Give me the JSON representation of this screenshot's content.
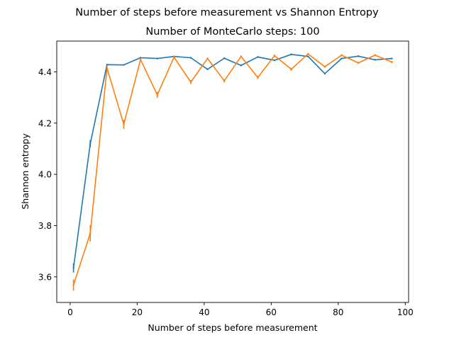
{
  "figure": {
    "suptitle": "Number of steps before measurement vs Shannon Entropy"
  },
  "chart_data": {
    "type": "line",
    "title": "Number of MonteCarlo steps: 100",
    "xlabel": "Number of steps before measurement",
    "ylabel": "Shannon entropy",
    "xlim": [
      -4,
      101
    ],
    "ylim": [
      3.5,
      4.52
    ],
    "xticks": [
      0,
      20,
      40,
      60,
      80,
      100
    ],
    "yticks": [
      3.6,
      3.8,
      4.0,
      4.2,
      4.4
    ],
    "ytick_labels": [
      "3.6",
      "3.8",
      "4.0",
      "4.2",
      "4.4"
    ],
    "grid": false,
    "legend": false,
    "error_bars": true,
    "x": [
      1,
      6,
      11,
      16,
      21,
      26,
      31,
      36,
      41,
      46,
      51,
      56,
      61,
      66,
      71,
      76,
      81,
      86,
      91,
      96
    ],
    "series": [
      {
        "color": "#1f77b4",
        "values": [
          3.635,
          4.12,
          4.428,
          4.427,
          4.455,
          4.452,
          4.46,
          4.455,
          4.41,
          4.453,
          4.425,
          4.458,
          4.445,
          4.468,
          4.46,
          4.393,
          4.452,
          4.461,
          4.447,
          4.452
        ],
        "errors": [
          0.018,
          0.014,
          0.003,
          0.003,
          0.003,
          0.003,
          0.003,
          0.003,
          0.003,
          0.003,
          0.003,
          0.003,
          0.003,
          0.003,
          0.003,
          0.003,
          0.003,
          0.003,
          0.003,
          0.003
        ]
      },
      {
        "color": "#ff7f0e",
        "values": [
          3.568,
          3.77,
          4.415,
          4.195,
          4.448,
          4.31,
          4.457,
          4.36,
          4.452,
          4.365,
          4.46,
          4.378,
          4.463,
          4.41,
          4.47,
          4.42,
          4.465,
          4.435,
          4.465,
          4.438
        ],
        "errors": [
          0.022,
          0.032,
          0.006,
          0.018,
          0.006,
          0.012,
          0.006,
          0.008,
          0.004,
          0.006,
          0.004,
          0.006,
          0.004,
          0.006,
          0.004,
          0.004,
          0.004,
          0.004,
          0.004,
          0.004
        ]
      }
    ]
  }
}
